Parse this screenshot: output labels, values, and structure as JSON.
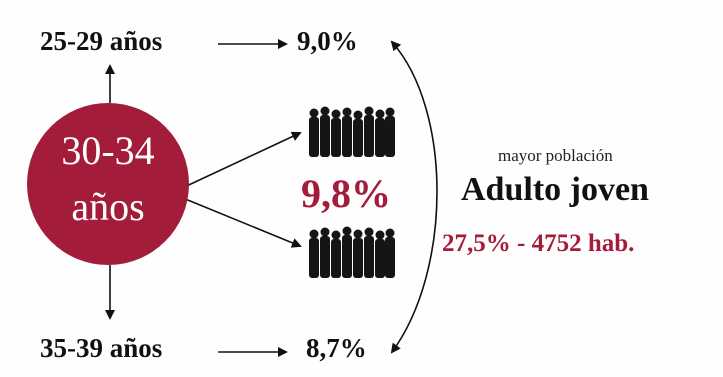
{
  "colors": {
    "accent": "#a31c3a",
    "text": "#111111"
  },
  "top_group": {
    "age_label": "25-29 años",
    "percent": "9,0%"
  },
  "center_group": {
    "age_line1": "30-34",
    "age_line2": "años",
    "percent": "9,8%"
  },
  "bottom_group": {
    "age_label": "35-39 años",
    "percent": "8,7%"
  },
  "summary": {
    "subtitle": "mayor población",
    "title": "Adulto joven",
    "stat": "27,5% - 4752 hab."
  }
}
